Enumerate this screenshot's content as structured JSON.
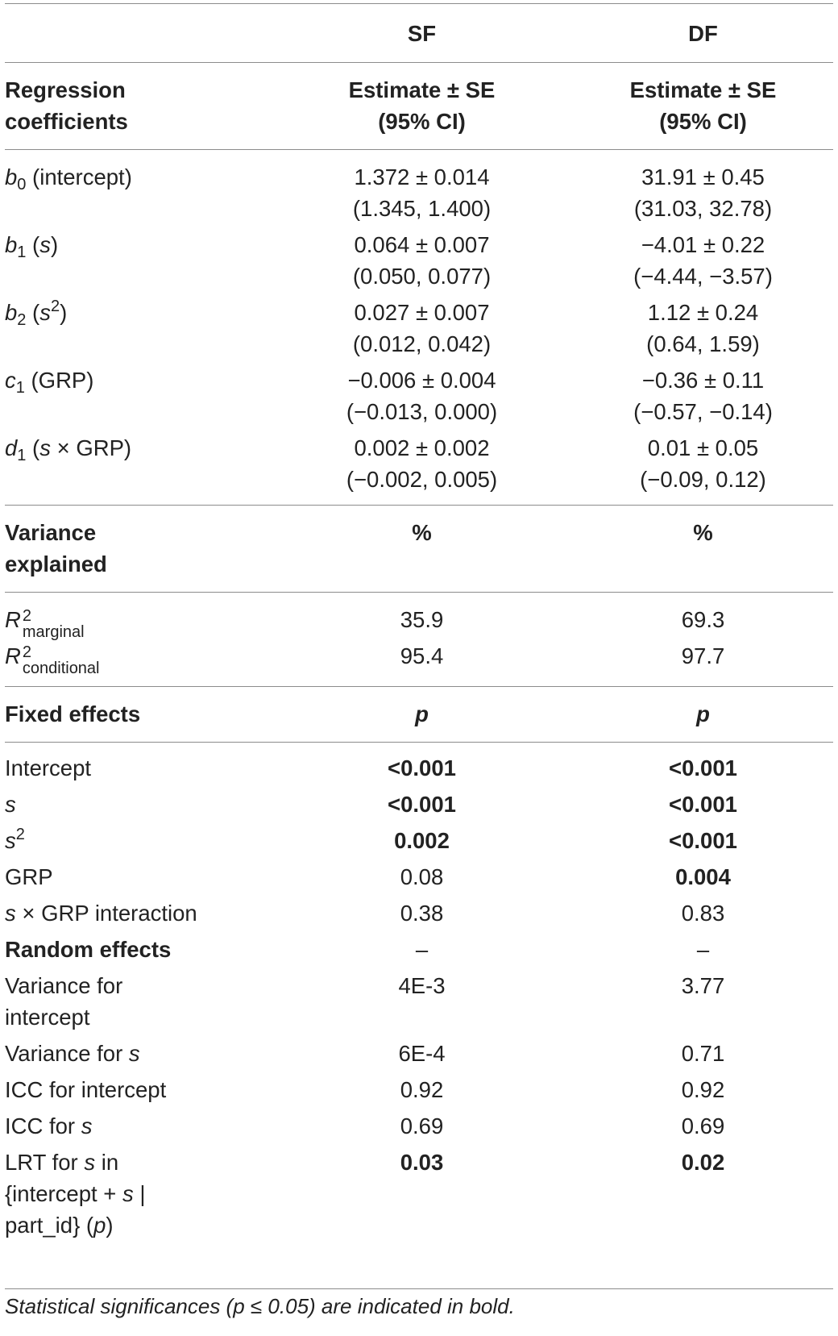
{
  "headers": {
    "col_sf": "SF",
    "col_df": "DF",
    "reg_label_line1": "Regression",
    "reg_label_line2": "coefficients",
    "est_line1": "Estimate ± SE",
    "est_line2": "(95% CI)"
  },
  "coefficients": [
    {
      "sym": "b",
      "sub": "0",
      "desc": " (intercept)",
      "sf_est": "1.372 ± 0.014",
      "sf_ci": "(1.345, 1.400)",
      "df_est": "31.91 ± 0.45",
      "df_ci": "(31.03, 32.78)"
    },
    {
      "sym": "b",
      "sub": "1",
      "desc_pre": " (",
      "desc_it": "s",
      "desc_post": ")",
      "sf_est": "0.064 ± 0.007",
      "sf_ci": "(0.050, 0.077)",
      "df_est": "−4.01 ± 0.22",
      "df_ci": "(−4.44, −3.57)"
    },
    {
      "sym": "b",
      "sub": "2",
      "desc_pre": " (",
      "desc_it": "s",
      "desc_sup": "2",
      "desc_post": ")",
      "sf_est": "0.027 ± 0.007",
      "sf_ci": "(0.012, 0.042)",
      "df_est": "1.12 ± 0.24",
      "df_ci": "(0.64, 1.59)"
    },
    {
      "sym": "c",
      "sub": "1",
      "desc": " (GRP)",
      "sf_est": "−0.006 ± 0.004",
      "sf_ci": "(−0.013, 0.000)",
      "df_est": "−0.36 ± 0.11",
      "df_ci": "(−0.57, −0.14)"
    },
    {
      "sym": "d",
      "sub": "1",
      "desc_pre": " (",
      "desc_it": "s",
      "desc_post": " × GRP)",
      "sf_est": "0.002 ± 0.002",
      "sf_ci": "(−0.002, 0.005)",
      "df_est": "0.01 ± 0.05",
      "df_ci": "(−0.09, 0.12)"
    }
  ],
  "variance": {
    "label_line1": "Variance",
    "label_line2": "explained",
    "unit": "%",
    "r2_symbol": "R",
    "r2_sup": "2",
    "marginal_sub": "marginal",
    "marginal_sf": "35.9",
    "marginal_df": "69.3",
    "conditional_sub": "conditional",
    "conditional_sf": "95.4",
    "conditional_df": "97.7"
  },
  "fixed": {
    "label": "Fixed effects",
    "p_header": "p",
    "intercept_label": "Intercept",
    "intercept_sf": "<0.001",
    "intercept_df": "<0.001",
    "s_label": "s",
    "s_sf": "<0.001",
    "s_df": "<0.001",
    "s2_label": "s",
    "s2_sup": "2",
    "s2_sf": "0.002",
    "s2_df": "<0.001",
    "grp_label": "GRP",
    "grp_sf": "0.08",
    "grp_df": "0.004",
    "sxgrp_s": "s",
    "sxgrp_rest": " × GRP interaction",
    "sxgrp_sf": "0.38",
    "sxgrp_df": "0.83"
  },
  "random": {
    "label": "Random effects",
    "sf": "–",
    "df": "–",
    "var_int_line1": "Variance for",
    "var_int_line2": "intercept",
    "var_int_sf": "4E-3",
    "var_int_df": "3.77",
    "var_s_pre": "Variance for ",
    "var_s_it": "s",
    "var_s_sf": "6E-4",
    "var_s_df": "0.71",
    "icc_int_label": "ICC for intercept",
    "icc_int_sf": "0.92",
    "icc_int_df": "0.92",
    "icc_s_pre": "ICC for ",
    "icc_s_it": "s",
    "icc_s_sf": "0.69",
    "icc_s_df": "0.69",
    "lrt_l1_pre": "LRT for ",
    "lrt_l1_it": "s",
    "lrt_l1_post": " in",
    "lrt_l2_pre": "{intercept + ",
    "lrt_l2_it": "s",
    "lrt_l2_post": " |",
    "lrt_l3_pre": "part_id} (",
    "lrt_l3_it": "p",
    "lrt_l3_post": ")",
    "lrt_sf": "0.03",
    "lrt_df": "0.02"
  },
  "footnote": {
    "pre": "Statistical significances (",
    "p": "p",
    "post": " ≤ 0.05) are indicated in bold."
  }
}
